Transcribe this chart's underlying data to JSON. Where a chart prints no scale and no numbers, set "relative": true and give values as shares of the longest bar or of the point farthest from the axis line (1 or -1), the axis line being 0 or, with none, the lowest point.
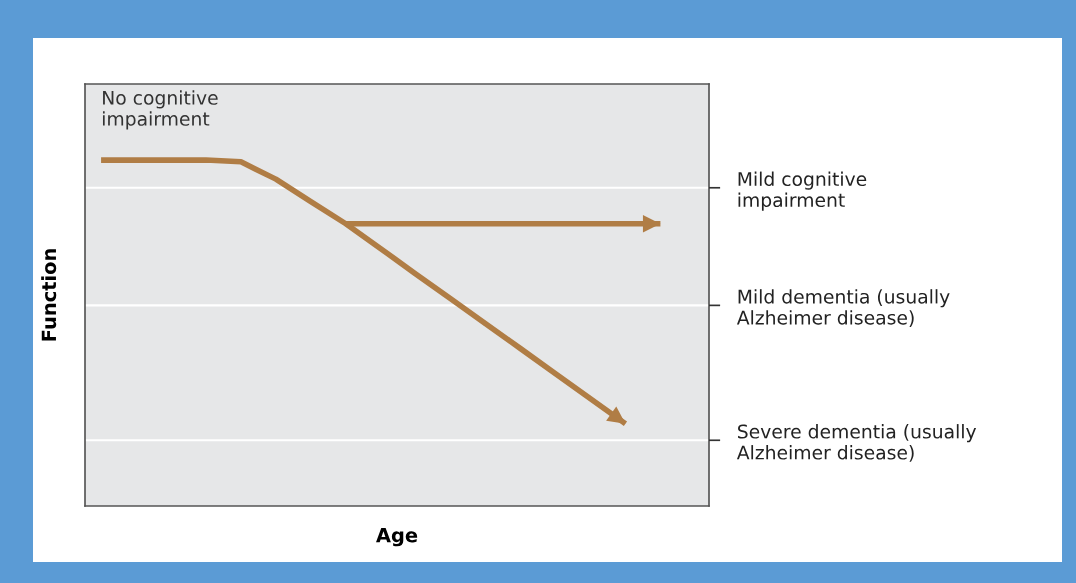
{
  "chart_data": {
    "type": "line",
    "relative": true,
    "xlabel": "Age",
    "ylabel": "Function",
    "tick_labels": "y2",
    "categories": [
      null,
      null,
      null,
      null,
      null,
      null,
      null,
      null,
      null,
      null,
      null,
      null,
      null,
      null,
      null,
      null,
      null
    ],
    "series": [
      {
        "color": "#b07d45",
        "values": [
          1,
          1,
          1,
          1,
          0.995,
          0.945,
          0.88,
          0.816,
          0.744,
          0.671,
          0.599,
          0.527,
          0.455,
          0.382,
          0.31,
          0.238,
          null
        ]
      },
      {
        "color": "#b07d45",
        "values": [
          null,
          null,
          null,
          null,
          null,
          null,
          null,
          0.816,
          0.816,
          0.816,
          0.816,
          0.816,
          0.816,
          0.816,
          0.816,
          0.816,
          0.816
        ]
      }
    ],
    "ref_lines": [
      {
        "axis": "y",
        "value": 0.92,
        "label": "Mild cognitive\nimpairment",
        "color": "#ffffff"
      },
      {
        "axis": "y",
        "value": 0.58,
        "label": "Mild dementia (usually\nAlzheimer disease)",
        "color": "#ffffff"
      },
      {
        "axis": "y",
        "value": 0.19,
        "label": "Severe dementia (usually\nAlzheimer disease)",
        "color": "#ffffff"
      }
    ],
    "annotations": [
      "No cognitive\nimpairment"
    ]
  }
}
